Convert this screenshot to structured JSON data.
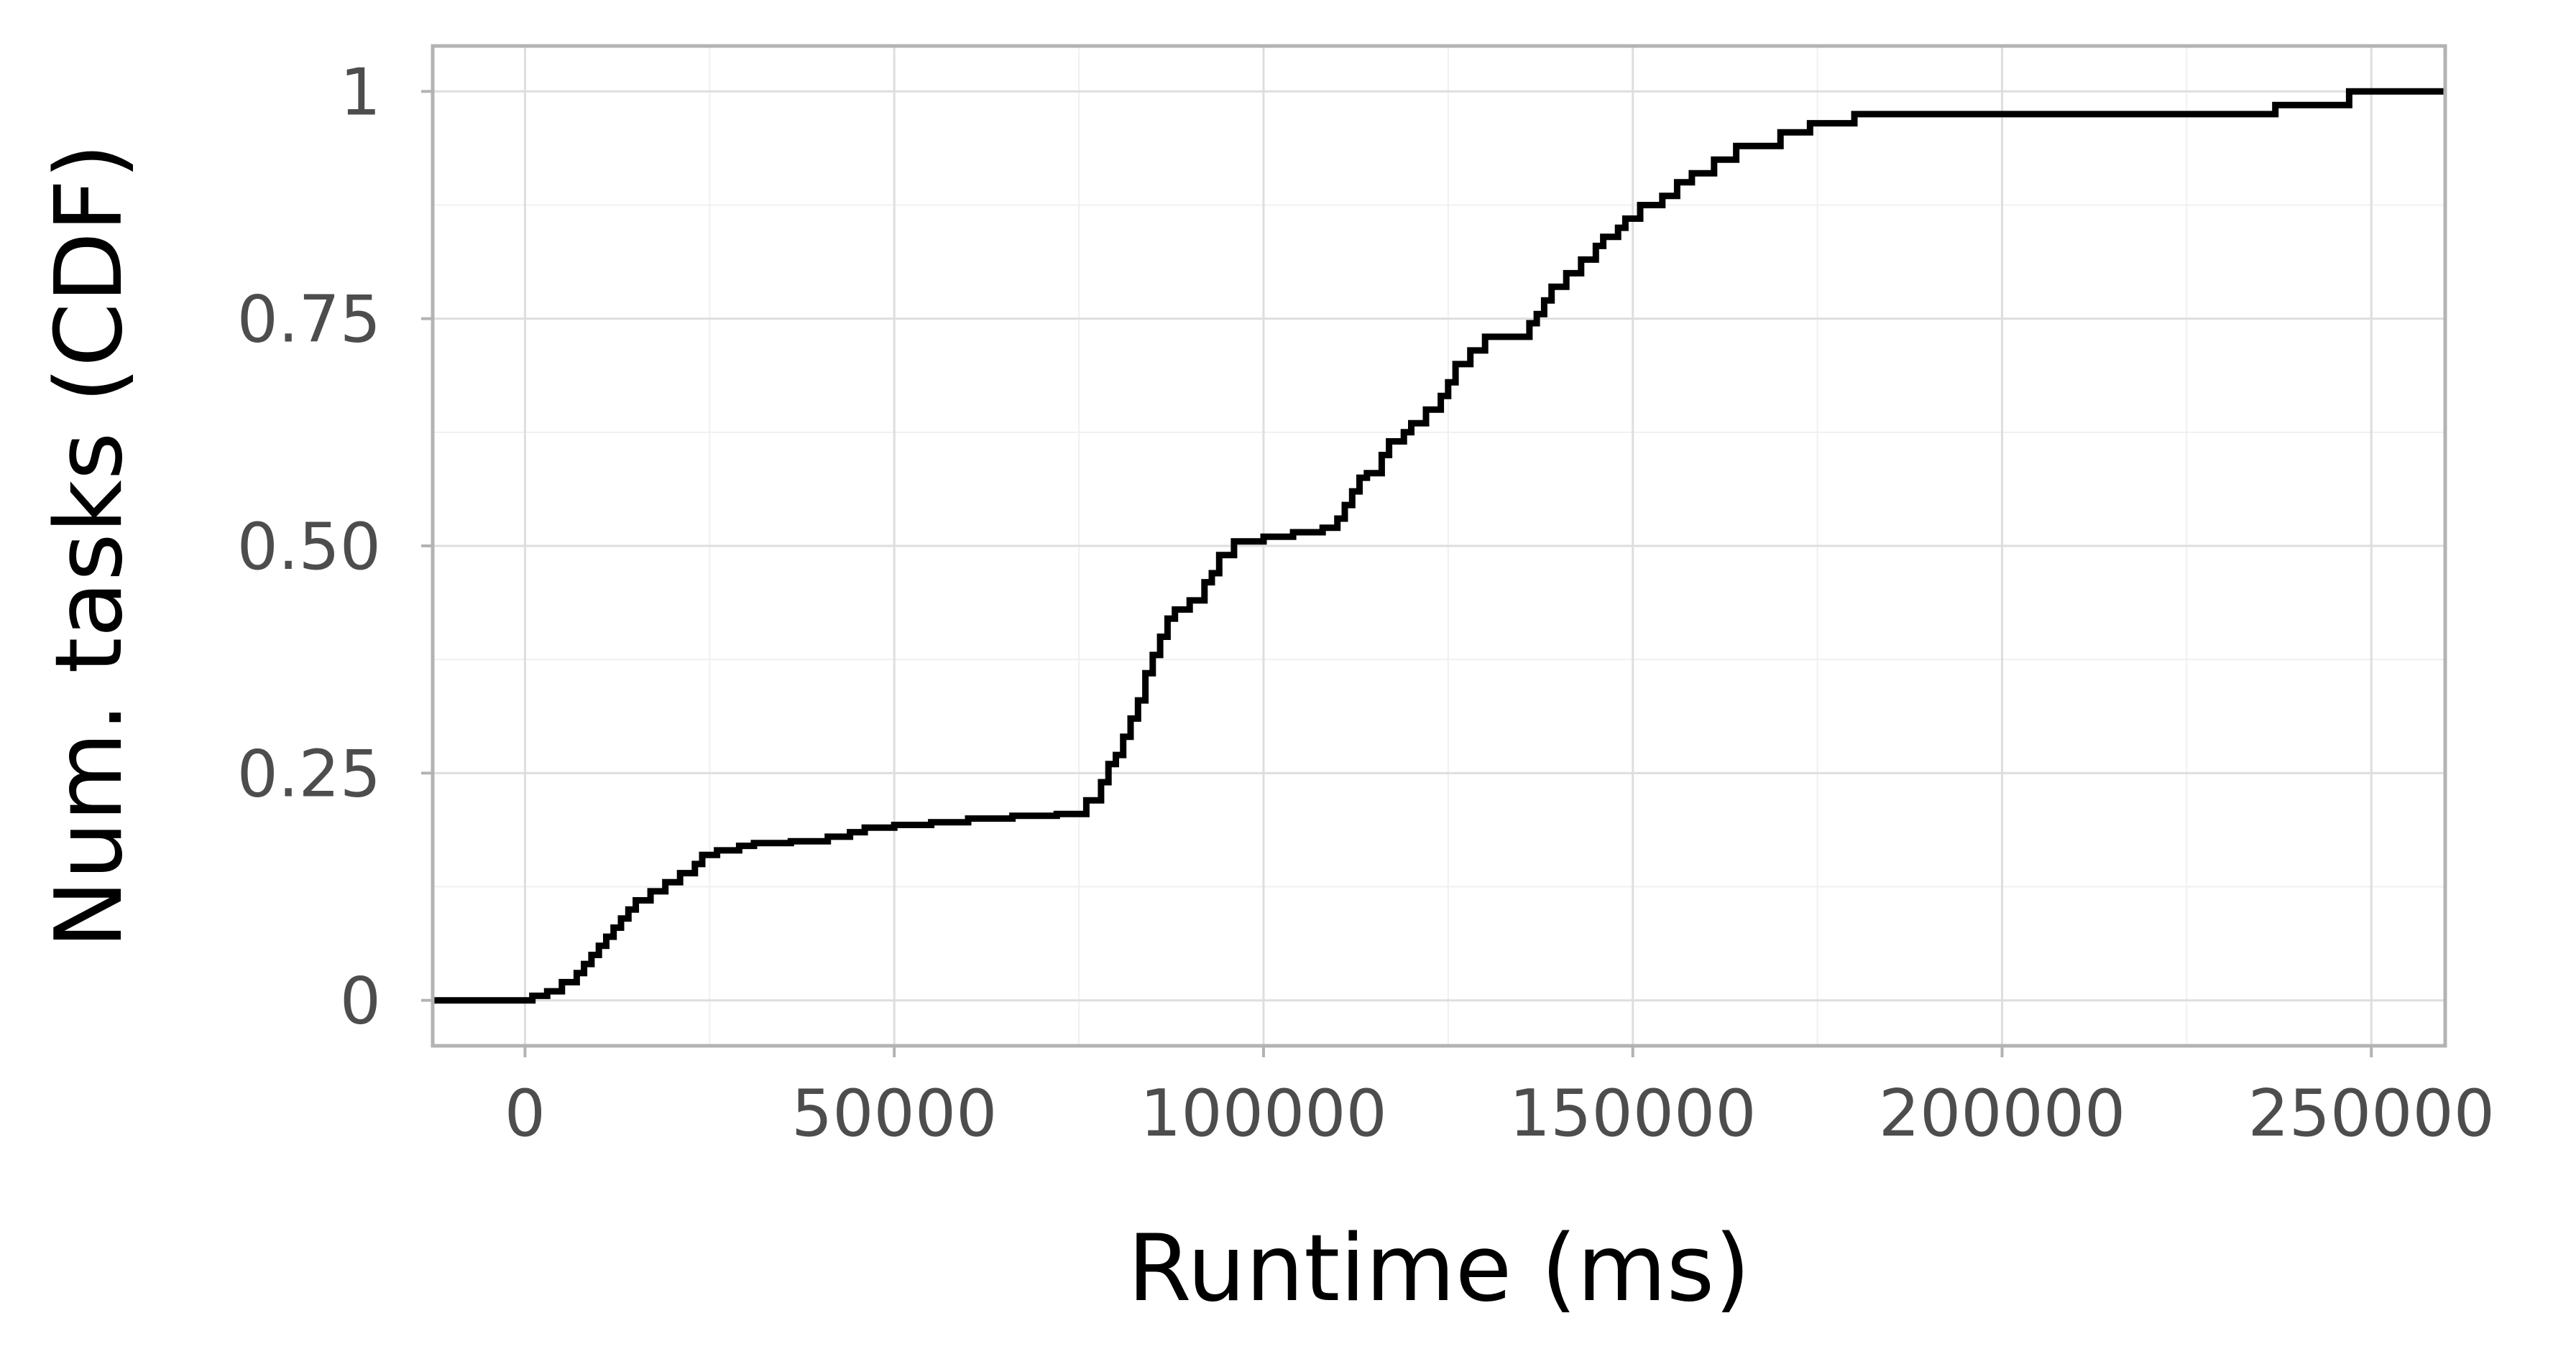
{
  "colors": {
    "background": "#ffffff",
    "panel_border": "#b3b3b3",
    "grid_major": "#dedede",
    "grid_minor": "#f0f0f0",
    "line": "#000000",
    "tick_text": "#4d4d4d"
  },
  "chart_data": {
    "type": "line",
    "step": true,
    "xlabel": "Runtime (ms)",
    "ylabel": "Num. tasks (CDF)",
    "xlim": [
      -12500,
      260000
    ],
    "ylim": [
      -0.05,
      1.05
    ],
    "xticks": [
      0,
      50000,
      100000,
      150000,
      200000,
      250000
    ],
    "xtick_labels": [
      "0",
      "50000",
      "100000",
      "150000",
      "200000",
      "250000"
    ],
    "yticks": [
      0,
      0.25,
      0.5,
      0.75,
      1
    ],
    "ytick_labels": [
      "0",
      "0.25",
      "0.50",
      "0.75",
      "1"
    ],
    "grid": true,
    "series": [
      {
        "x": [
          -12500,
          1000,
          3000,
          5000,
          7000,
          8000,
          9000,
          10000,
          11000,
          12000,
          13000,
          14000,
          15000,
          17000,
          19000,
          21000,
          23000,
          24000,
          26000,
          29000,
          31000,
          36000,
          41000,
          44000,
          46000,
          50000,
          55000,
          60000,
          66000,
          72000,
          76000,
          78000,
          79000,
          80000,
          81000,
          82000,
          83000,
          84000,
          85000,
          86000,
          87000,
          88000,
          90000,
          92000,
          93000,
          94000,
          96000,
          100000,
          104000,
          108000,
          110000,
          111000,
          112000,
          113000,
          114000,
          116000,
          117000,
          119000,
          120000,
          122000,
          124000,
          125000,
          126000,
          128000,
          130000,
          136000,
          137000,
          138000,
          139000,
          141000,
          143000,
          145000,
          146000,
          148000,
          149000,
          151000,
          154000,
          156000,
          158000,
          161000,
          164000,
          170000,
          174000,
          180000,
          237000,
          247000,
          260000
        ],
        "y": [
          0,
          0.005,
          0.01,
          0.02,
          0.03,
          0.04,
          0.05,
          0.06,
          0.07,
          0.08,
          0.09,
          0.1,
          0.11,
          0.12,
          0.13,
          0.14,
          0.15,
          0.16,
          0.165,
          0.17,
          0.173,
          0.175,
          0.18,
          0.185,
          0.19,
          0.193,
          0.196,
          0.2,
          0.203,
          0.205,
          0.22,
          0.24,
          0.26,
          0.27,
          0.29,
          0.31,
          0.33,
          0.36,
          0.38,
          0.4,
          0.42,
          0.43,
          0.44,
          0.46,
          0.47,
          0.49,
          0.505,
          0.51,
          0.515,
          0.52,
          0.53,
          0.545,
          0.56,
          0.575,
          0.58,
          0.6,
          0.615,
          0.625,
          0.635,
          0.65,
          0.665,
          0.68,
          0.7,
          0.715,
          0.73,
          0.745,
          0.755,
          0.77,
          0.785,
          0.8,
          0.815,
          0.83,
          0.84,
          0.85,
          0.86,
          0.875,
          0.885,
          0.9,
          0.91,
          0.925,
          0.94,
          0.955,
          0.965,
          0.975,
          0.985,
          1,
          1
        ]
      }
    ]
  }
}
